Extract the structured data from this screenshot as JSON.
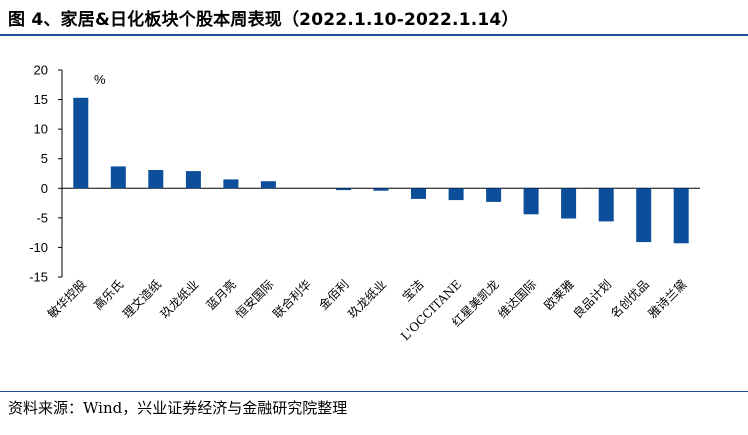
{
  "header": {
    "title": "图 4、家居&日化板块个股本周表现（2022.1.10-2022.1.14）"
  },
  "footer": {
    "source": "资料来源：Wind，兴业证券经济与金融研究院整理"
  },
  "chart_data": {
    "type": "bar",
    "unit_label": "%",
    "categories": [
      "敏华控股",
      "高乐氏",
      "理文造纸",
      "玖龙纸业",
      "蓝月亮",
      "恒安国际",
      "联合利华",
      "金佰利",
      "玖龙纸业",
      "宝洁",
      "L'OCCITANE",
      "红星美凯龙",
      "维达国际",
      "欧莱雅",
      "良品计划",
      "名创优品",
      "雅诗兰黛"
    ],
    "values": [
      15.3,
      3.7,
      3.1,
      2.9,
      1.5,
      1.2,
      0.0,
      -0.3,
      -0.4,
      -1.8,
      -2.0,
      -2.3,
      -4.4,
      -5.1,
      -5.6,
      -9.1,
      -9.3
    ],
    "ylim": [
      -15,
      20
    ],
    "yticks": [
      -15,
      -10,
      -5,
      0,
      5,
      10,
      15,
      20
    ],
    "bar_color": "#0c4e9a",
    "grid": false,
    "legend": "none"
  }
}
